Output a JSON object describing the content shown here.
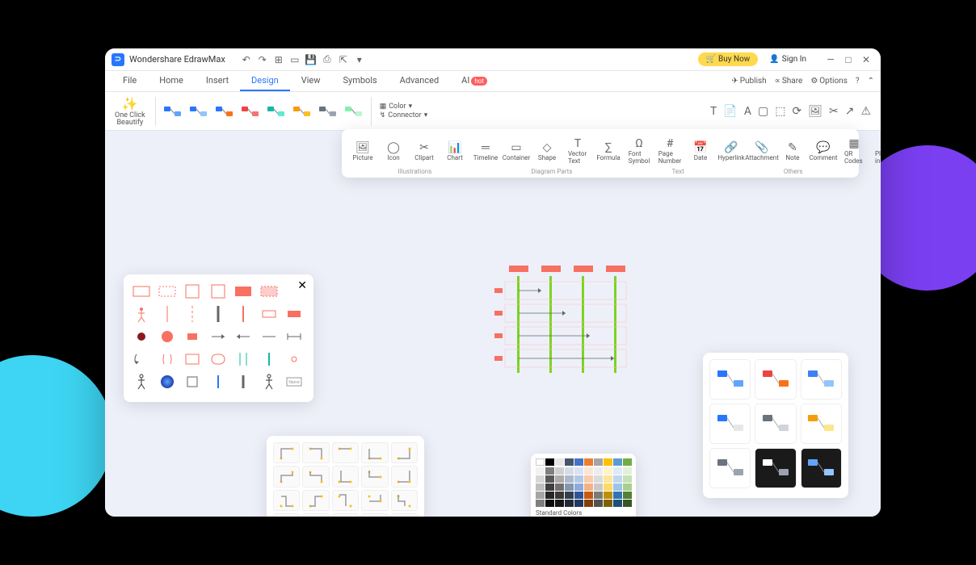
{
  "app": {
    "title": "Wondershare EdrawMax"
  },
  "titlebar": {
    "buy": "Buy Now",
    "signin": "Sign In"
  },
  "menu": {
    "tabs": [
      "File",
      "Home",
      "Insert",
      "Design",
      "View",
      "Symbols",
      "Advanced",
      "AI"
    ],
    "active": "Design",
    "hot_index": 7,
    "right": {
      "publish": "Publish",
      "share": "Share",
      "options": "Options"
    }
  },
  "ribbon": {
    "beautify": "One Click\nBeautify",
    "color": "Color",
    "connector": "Connector"
  },
  "styles": {
    "colors": [
      {
        "a": "#2876ff",
        "b": "#60a5fa"
      },
      {
        "a": "#2876ff",
        "b": "#93c5fd"
      },
      {
        "a": "#2876ff",
        "b": "#f97316"
      },
      {
        "a": "#ef4444",
        "b": "#f87171"
      },
      {
        "a": "#14b8a6",
        "b": "#5eead4"
      },
      {
        "a": "#f59e0b",
        "b": "#fbbf24"
      },
      {
        "a": "#6b7280",
        "b": "#9ca3af"
      },
      {
        "a": "#86efac",
        "b": "#bbf7d0"
      }
    ]
  },
  "insert_panel": {
    "items": [
      "Picture",
      "Icon",
      "Clipart",
      "Chart",
      "Timeline",
      "Container",
      "Shape",
      "Vector Text",
      "Formula",
      "Font Symbol",
      "Page Number",
      "Date",
      "Hyperlink",
      "Attachment",
      "Note",
      "Comment",
      "QR Codes",
      "Plug-in"
    ],
    "groups": [
      "Illustrations",
      "Diagram Parts",
      "Text",
      "Others"
    ]
  },
  "color_panel": {
    "label_std": "Standard Colors",
    "theme_row1": [
      "#ffffff",
      "#000000",
      "#e7e6e6",
      "#44546a",
      "#4472c4",
      "#ed7d31",
      "#a5a5a5",
      "#ffc000",
      "#5b9bd5",
      "#70ad47"
    ],
    "shades": [
      [
        "#f2f2f2",
        "#7f7f7f",
        "#d0cece",
        "#d6dce5",
        "#d9e2f3",
        "#fbe5d6",
        "#ededed",
        "#fff2cc",
        "#deebf7",
        "#e2f0d9"
      ],
      [
        "#d8d8d8",
        "#595959",
        "#aeabab",
        "#adb9ca",
        "#b4c7e7",
        "#f7cbac",
        "#dbdbdb",
        "#fee599",
        "#bdd7ee",
        "#c5e0b4"
      ],
      [
        "#bfbfbf",
        "#3f3f3f",
        "#757070",
        "#8496b0",
        "#8eaadb",
        "#f4b183",
        "#c9c9c9",
        "#ffd965",
        "#9dc3e6",
        "#a8d08d"
      ],
      [
        "#a5a5a5",
        "#262626",
        "#3a3838",
        "#323f4f",
        "#2f5496",
        "#c55a11",
        "#7b7b7b",
        "#bf9000",
        "#2e75b6",
        "#538135"
      ],
      [
        "#7f7f7f",
        "#0c0c0c",
        "#171616",
        "#222a35",
        "#1f3864",
        "#833c0b",
        "#525252",
        "#7f6000",
        "#1e4e79",
        "#375623"
      ]
    ],
    "standard": [
      "#c00000",
      "#ff0000",
      "#ffc000",
      "#ffff00",
      "#92d050",
      "#00b050",
      "#00b0f0",
      "#0070c0",
      "#002060",
      "#7030a0"
    ]
  },
  "theme_panel": {
    "variants": [
      {
        "bg": "light",
        "a": "#2876ff",
        "b": "#60a5fa"
      },
      {
        "bg": "light",
        "a": "#ef4444",
        "b": "#f97316"
      },
      {
        "bg": "light",
        "a": "#3b82f6",
        "b": "#93c5fd"
      },
      {
        "bg": "light",
        "a": "#2876ff",
        "b": "#e5e7eb"
      },
      {
        "bg": "light",
        "a": "#6b7280",
        "b": "#d1d5db"
      },
      {
        "bg": "light",
        "a": "#f59e0b",
        "b": "#fde68a"
      },
      {
        "bg": "light",
        "a": "#6b7280",
        "b": "#9ca3af"
      },
      {
        "bg": "dark",
        "a": "#ffffff",
        "b": "#9ca3af"
      },
      {
        "bg": "dark",
        "a": "#60a5fa",
        "b": "#93c5fd"
      }
    ]
  },
  "diagram": {
    "top_color": "#f77062",
    "rail_color": "#7dd321",
    "line_color": "#666666"
  }
}
